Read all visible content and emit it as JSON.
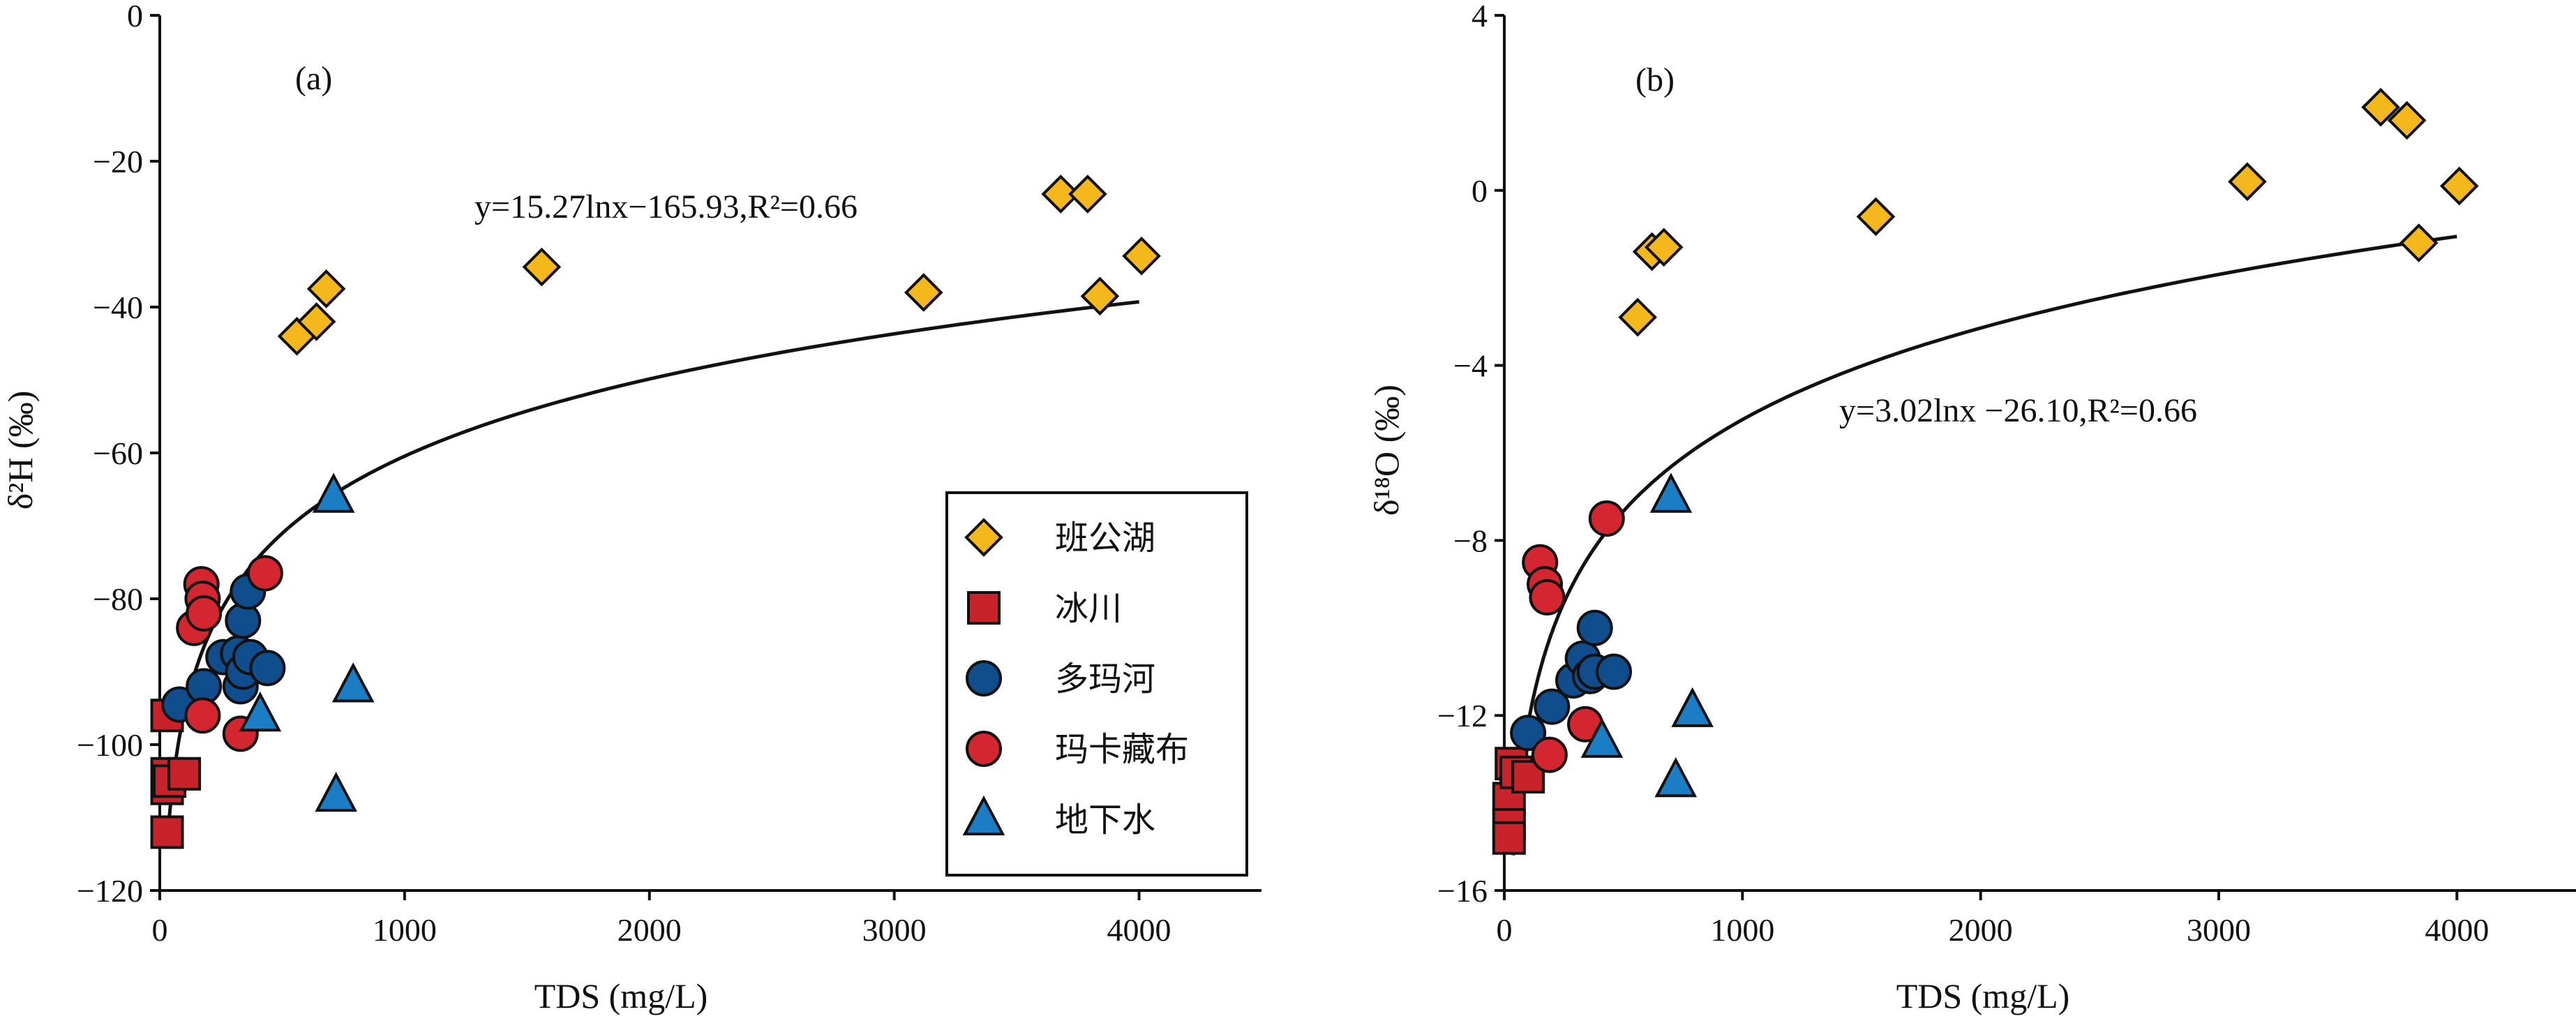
{
  "colors": {
    "班公湖": "#f4b81d",
    "冰川": "#c8232a",
    "多玛河": "#0f4d8c",
    "玛卡藏布": "#d32630",
    "地下水": "#1b7dc4",
    "outline": "#111111"
  },
  "legend": {
    "entries": [
      {
        "name": "班公湖",
        "shape": "diamond"
      },
      {
        "name": "冰川",
        "shape": "square"
      },
      {
        "name": "多玛河",
        "shape": "circle"
      },
      {
        "name": "玛卡藏布",
        "shape": "circle"
      },
      {
        "name": "地下水",
        "shape": "triangle"
      }
    ],
    "placement": "lower-right of panel (a)"
  },
  "chart_data": [
    {
      "type": "scatter",
      "panel_label": "(a)",
      "xlabel": "TDS (mg/L)",
      "ylabel": "δ²H (‰)",
      "xlim": [
        0,
        4500
      ],
      "ylim": [
        -120,
        0
      ],
      "xticks": [
        0,
        1000,
        2000,
        3000,
        4000
      ],
      "yticks": [
        0,
        -20,
        -40,
        -60,
        -80,
        -100,
        -120
      ],
      "xtick_labels": [
        "0",
        "1000",
        "2000",
        "3000",
        "4000"
      ],
      "ytick_labels": [
        "0",
        "−20",
        "−40",
        "−60",
        "−80",
        "−100",
        "−120"
      ],
      "equation": "y=15.27lnx−165.93,R²=0.66",
      "fit": {
        "a": 15.27,
        "b": -165.93,
        "x_from": 30,
        "x_to": 4000
      },
      "series": [
        {
          "name": "班公湖",
          "shape": "diamond",
          "points": [
            [
              560,
              -44
            ],
            [
              640,
              -42
            ],
            [
              680,
              -37.5
            ],
            [
              1560,
              -34.5
            ],
            [
              3120,
              -38
            ],
            [
              3680,
              -24.5
            ],
            [
              3790,
              -24.5
            ],
            [
              3840,
              -38.5
            ],
            [
              4010,
              -33
            ]
          ]
        },
        {
          "name": "冰川",
          "shape": "square",
          "points": [
            [
              30,
              -96
            ],
            [
              30,
              -104
            ],
            [
              30,
              -106
            ],
            [
              30,
              -112
            ],
            [
              40,
              -105
            ],
            [
              100,
              -104
            ]
          ]
        },
        {
          "name": "多玛河",
          "shape": "circle",
          "points": [
            [
              80,
              -94.5
            ],
            [
              180,
              -92
            ],
            [
              260,
              -88
            ],
            [
              320,
              -87.5
            ],
            [
              330,
              -92
            ],
            [
              340,
              -90
            ],
            [
              340,
              -83
            ],
            [
              360,
              -79
            ],
            [
              370,
              -88
            ],
            [
              440,
              -89.5
            ]
          ]
        },
        {
          "name": "玛卡藏布",
          "shape": "circle",
          "points": [
            [
              140,
              -84
            ],
            [
              170,
              -78
            ],
            [
              175,
              -80
            ],
            [
              180,
              -82
            ],
            [
              175,
              -96
            ],
            [
              330,
              -98.5
            ],
            [
              430,
              -76.5
            ]
          ]
        },
        {
          "name": "地下水",
          "shape": "triangle",
          "points": [
            [
              410,
              -96
            ],
            [
              710,
              -66
            ],
            [
              720,
              -107
            ],
            [
              790,
              -92
            ]
          ]
        }
      ]
    },
    {
      "type": "scatter",
      "panel_label": "(b)",
      "xlabel": "TDS (mg/L)",
      "ylabel": "δ¹⁸O (‰)",
      "xlim": [
        0,
        4500
      ],
      "ylim": [
        -16,
        4
      ],
      "xticks": [
        0,
        1000,
        2000,
        3000,
        4000
      ],
      "yticks": [
        4,
        0,
        -4,
        -8,
        -12,
        -16
      ],
      "xtick_labels": [
        "0",
        "1000",
        "2000",
        "3000",
        "4000"
      ],
      "ytick_labels": [
        "4",
        "0",
        "−4",
        "−8",
        "−12",
        "−16"
      ],
      "equation": "y=3.02lnx −26.10,R²=0.66",
      "fit": {
        "a": 3.02,
        "b": -26.1,
        "x_from": 37,
        "x_to": 4000
      },
      "series": [
        {
          "name": "班公湖",
          "shape": "diamond",
          "points": [
            [
              560,
              -2.9
            ],
            [
              620,
              -1.4
            ],
            [
              670,
              -1.3
            ],
            [
              1560,
              -0.6
            ],
            [
              3120,
              0.2
            ],
            [
              3680,
              1.9
            ],
            [
              3790,
              1.6
            ],
            [
              3840,
              -1.2
            ],
            [
              4010,
              0.1
            ]
          ]
        },
        {
          "name": "冰川",
          "shape": "square",
          "points": [
            [
              20,
              -13.9
            ],
            [
              20,
              -14.5
            ],
            [
              20,
              -14.8
            ],
            [
              30,
              -13.1
            ],
            [
              50,
              -13.3
            ],
            [
              100,
              -13.4
            ]
          ]
        },
        {
          "name": "多玛河",
          "shape": "circle",
          "points": [
            [
              100,
              -12.4
            ],
            [
              200,
              -11.8
            ],
            [
              290,
              -11.2
            ],
            [
              330,
              -10.7
            ],
            [
              360,
              -11.1
            ],
            [
              380,
              -11.0
            ],
            [
              380,
              -10.0
            ],
            [
              460,
              -11.0
            ]
          ]
        },
        {
          "name": "玛卡藏布",
          "shape": "circle",
          "points": [
            [
              150,
              -8.5
            ],
            [
              170,
              -9.0
            ],
            [
              180,
              -9.3
            ],
            [
              190,
              -12.9
            ],
            [
              340,
              -12.2
            ],
            [
              430,
              -7.5
            ]
          ]
        },
        {
          "name": "地下水",
          "shape": "triangle",
          "points": [
            [
              410,
              -12.6
            ],
            [
              700,
              -7.0
            ],
            [
              720,
              -13.5
            ],
            [
              790,
              -11.9
            ]
          ]
        }
      ]
    }
  ]
}
